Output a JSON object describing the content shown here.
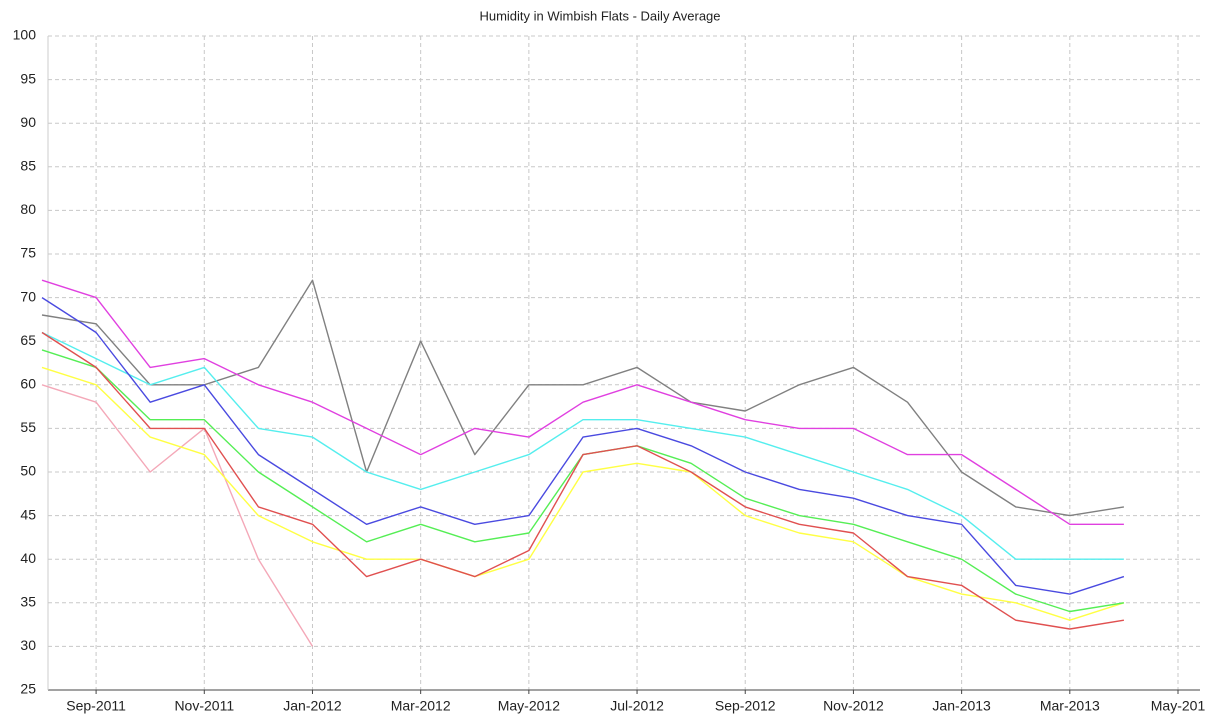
{
  "chart_data": {
    "type": "line",
    "title": "Humidity in Wimbish Flats - Daily Average",
    "x": [
      "2011-08",
      "2011-09",
      "2011-10",
      "2011-11",
      "2011-12",
      "2012-01",
      "2012-02",
      "2012-03",
      "2012-04",
      "2012-05",
      "2012-06",
      "2012-07",
      "2012-08",
      "2012-09",
      "2012-10",
      "2012-11",
      "2012-12",
      "2013-01",
      "2013-02",
      "2013-03",
      "2013-04"
    ],
    "xlim": [
      "2011-08",
      "2013-05"
    ],
    "xticks": [
      {
        "value": "2011-09",
        "label": "Sep-2011"
      },
      {
        "value": "2011-11",
        "label": "Nov-2011"
      },
      {
        "value": "2012-01",
        "label": "Jan-2012"
      },
      {
        "value": "2012-03",
        "label": "Mar-2012"
      },
      {
        "value": "2012-05",
        "label": "May-2012"
      },
      {
        "value": "2012-07",
        "label": "Jul-2012"
      },
      {
        "value": "2012-09",
        "label": "Sep-2012"
      },
      {
        "value": "2012-11",
        "label": "Nov-2012"
      },
      {
        "value": "2013-01",
        "label": "Jan-2013"
      },
      {
        "value": "2013-03",
        "label": "Mar-2013"
      },
      {
        "value": "2013-05",
        "label": "May-201"
      }
    ],
    "ylim": [
      25,
      100
    ],
    "yticks": [
      25,
      30,
      35,
      40,
      45,
      50,
      55,
      60,
      65,
      70,
      75,
      80,
      85,
      90,
      95,
      100
    ],
    "grid": true,
    "series": [
      {
        "color": "#f4a8b8",
        "values": [
          60,
          58,
          50,
          55,
          40,
          30,
          null,
          null,
          null,
          null,
          null,
          null,
          null,
          null,
          null,
          null,
          null,
          null,
          null,
          null,
          null
        ]
      },
      {
        "color": "#808080",
        "values": [
          68,
          67,
          60,
          60,
          62,
          72,
          50,
          65,
          52,
          60,
          60,
          62,
          58,
          57,
          60,
          62,
          58,
          50,
          46,
          45,
          46
        ]
      },
      {
        "color": "#55eeee",
        "values": [
          66,
          63,
          60,
          62,
          55,
          54,
          50,
          48,
          50,
          52,
          56,
          56,
          55,
          54,
          52,
          50,
          48,
          45,
          40,
          40,
          40
        ]
      },
      {
        "color": "#ffff44",
        "values": [
          62,
          60,
          54,
          52,
          45,
          42,
          40,
          40,
          38,
          40,
          50,
          51,
          50,
          45,
          43,
          42,
          38,
          36,
          35,
          33,
          35
        ]
      },
      {
        "color": "#55ee55",
        "values": [
          64,
          62,
          56,
          56,
          50,
          46,
          42,
          44,
          42,
          43,
          52,
          53,
          51,
          47,
          45,
          44,
          42,
          40,
          36,
          34,
          35
        ]
      },
      {
        "color": "#e05050",
        "values": [
          66,
          62,
          55,
          55,
          46,
          44,
          38,
          40,
          38,
          41,
          52,
          53,
          50,
          46,
          44,
          43,
          38,
          37,
          33,
          32,
          33
        ]
      },
      {
        "color": "#4a4ae0",
        "values": [
          70,
          66,
          58,
          60,
          52,
          48,
          44,
          46,
          44,
          45,
          54,
          55,
          53,
          50,
          48,
          47,
          45,
          44,
          37,
          36,
          38
        ]
      },
      {
        "color": "#e040e0",
        "values": [
          72,
          70,
          62,
          63,
          60,
          58,
          55,
          52,
          55,
          54,
          58,
          60,
          58,
          56,
          55,
          55,
          52,
          52,
          48,
          44,
          44
        ]
      }
    ]
  }
}
